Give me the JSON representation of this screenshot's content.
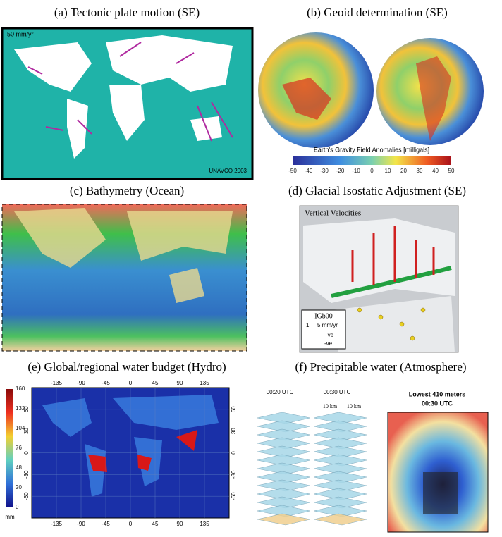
{
  "panels": [
    {
      "label": "(a) Tectonic plate motion (SE)",
      "texts": [
        "50 mm/yr",
        "UNAVCO 2003"
      ]
    },
    {
      "label": "(b) Geoid determination (SE)",
      "colorbar_title": "Earth's Gravity Field Anomalies [milligals]",
      "colorbar_ticks": [
        -50,
        -40,
        -30,
        -20,
        -10,
        0,
        10,
        20,
        30,
        40,
        50
      ]
    },
    {
      "label": "(c) Bathymetry (Ocean)"
    },
    {
      "label": "(d) Glacial Isostatic Adjustment (SE)",
      "texts": [
        "Vertical Velocities",
        "IGb00",
        "1",
        "5 mm/yr",
        "+ve",
        "-ve"
      ]
    },
    {
      "label": "(e) Global/regional water budget (Hydro)",
      "colorbar_ticks": [
        160,
        132,
        104,
        76,
        48,
        20,
        0
      ],
      "colorbar_unit": "mm",
      "lon_ticks": [
        -135,
        -90,
        -45,
        0,
        45,
        90,
        135
      ],
      "lat_ticks": [
        60,
        30,
        0,
        -30,
        -60
      ]
    },
    {
      "label": "(f) Precipitable water (Atmosphere)",
      "texts": [
        "00:20 UTC",
        "00:30 UTC",
        "10 km",
        "10 km",
        "Lowest 410 meters",
        "00:30 UTC"
      ]
    }
  ]
}
